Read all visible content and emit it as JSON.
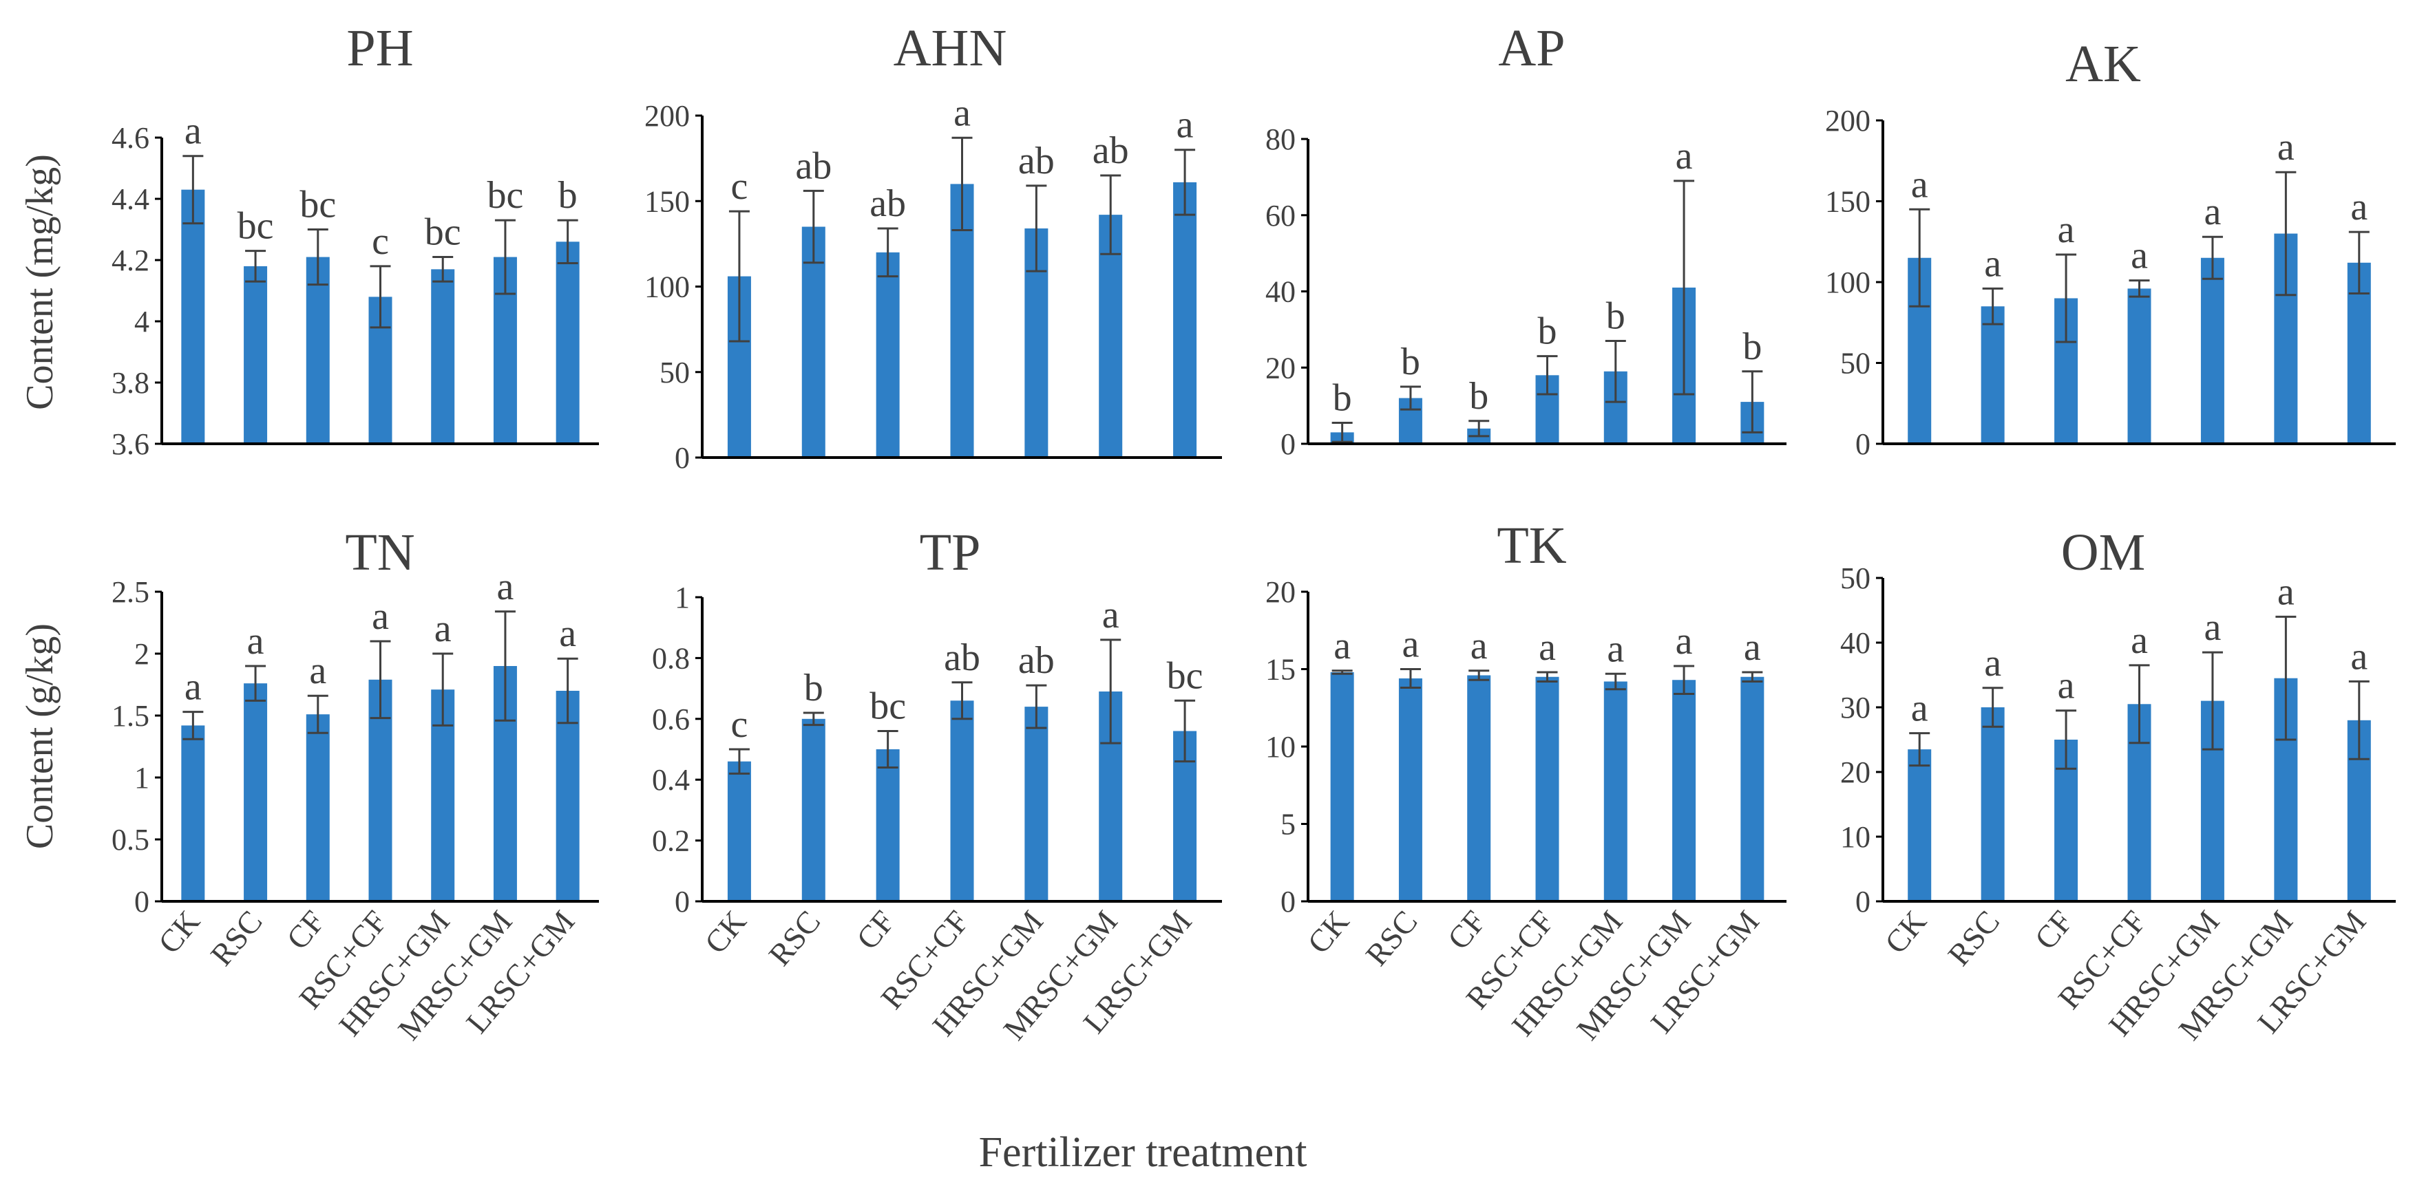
{
  "figure": {
    "xlabel": "Fertilizer treatment",
    "ylabel_top": "Content (mg/kg)",
    "ylabel_bottom": "Content (g/kg)"
  },
  "chart_data": [
    {
      "type": "bar",
      "title": "PH",
      "categories": [
        "CK",
        "RSC",
        "CF",
        "RSC+CF",
        "HRSC+GM",
        "MRSC+GM",
        "LRSC+GM"
      ],
      "values": [
        4.43,
        4.18,
        4.21,
        4.08,
        4.17,
        4.21,
        4.26
      ],
      "errors": [
        0.11,
        0.05,
        0.09,
        0.1,
        0.04,
        0.12,
        0.07
      ],
      "labels": [
        "a",
        "bc",
        "bc",
        "c",
        "bc",
        "bc",
        "b"
      ],
      "ylim": [
        3.6,
        4.6
      ],
      "yticks": [
        "3.6",
        "3.8",
        "4",
        "4.2",
        "4.4",
        "4.6"
      ],
      "color": "#2E7FC6"
    },
    {
      "type": "bar",
      "title": "AHN",
      "categories": [
        "CK",
        "RSC",
        "CF",
        "RSC+CF",
        "HRSC+GM",
        "MRSC+GM",
        "LRSC+GM"
      ],
      "values": [
        106,
        135,
        120,
        160,
        134,
        142,
        161
      ],
      "errors": [
        38,
        21,
        14,
        27,
        25,
        23,
        19
      ],
      "labels": [
        "c",
        "ab",
        "ab",
        "a",
        "ab",
        "ab",
        "a"
      ],
      "ylim": [
        0,
        200
      ],
      "yticks": [
        "0",
        "50",
        "100",
        "150",
        "200"
      ],
      "color": "#2E7FC6"
    },
    {
      "type": "bar",
      "title": "AP",
      "categories": [
        "CK",
        "RSC",
        "CF",
        "RSC+CF",
        "HRSC+GM",
        "MRSC+GM",
        "LRSC+GM"
      ],
      "values": [
        3,
        12,
        4,
        18,
        19,
        41,
        11
      ],
      "errors": [
        2.5,
        3,
        2,
        5,
        8,
        28,
        8
      ],
      "labels": [
        "b",
        "b",
        "b",
        "b",
        "b",
        "a",
        "b"
      ],
      "ylim": [
        0,
        80
      ],
      "yticks": [
        "0",
        "20",
        "40",
        "60",
        "80"
      ],
      "color": "#2E7FC6"
    },
    {
      "type": "bar",
      "title": "AK",
      "categories": [
        "CK",
        "RSC",
        "CF",
        "RSC+CF",
        "HRSC+GM",
        "MRSC+GM",
        "LRSC+GM"
      ],
      "values": [
        115,
        85,
        90,
        96,
        115,
        130,
        112
      ],
      "errors": [
        30,
        11,
        27,
        5,
        13,
        38,
        19
      ],
      "labels": [
        "a",
        "a",
        "a",
        "a",
        "a",
        "a",
        "a"
      ],
      "ylim": [
        0,
        200
      ],
      "yticks": [
        "0",
        "50",
        "100",
        "150",
        "200"
      ],
      "color": "#2E7FC6"
    },
    {
      "type": "bar",
      "title": "TN",
      "categories": [
        "CK",
        "RSC",
        "CF",
        "RSC+CF",
        "HRSC+GM",
        "MRSC+GM",
        "LRSC+GM"
      ],
      "values": [
        1.42,
        1.76,
        1.51,
        1.79,
        1.71,
        1.9,
        1.7
      ],
      "errors": [
        0.11,
        0.14,
        0.15,
        0.31,
        0.29,
        0.44,
        0.26
      ],
      "labels": [
        "a",
        "a",
        "a",
        "a",
        "a",
        "a",
        "a"
      ],
      "ylim": [
        0,
        2.5
      ],
      "yticks": [
        "0",
        "0.5",
        "1",
        "1.5",
        "2",
        "2.5"
      ],
      "color": "#2E7FC6"
    },
    {
      "type": "bar",
      "title": "TP",
      "categories": [
        "CK",
        "RSC",
        "CF",
        "RSC+CF",
        "HRSC+GM",
        "MRSC+GM",
        "LRSC+GM"
      ],
      "values": [
        0.46,
        0.6,
        0.5,
        0.66,
        0.64,
        0.69,
        0.56
      ],
      "errors": [
        0.04,
        0.02,
        0.06,
        0.06,
        0.07,
        0.17,
        0.1
      ],
      "labels": [
        "c",
        "b",
        "bc",
        "ab",
        "ab",
        "a",
        "bc"
      ],
      "ylim": [
        0,
        1
      ],
      "yticks": [
        "0",
        "0.2",
        "0.4",
        "0.6",
        "0.8",
        "1"
      ],
      "color": "#2E7FC6"
    },
    {
      "type": "bar",
      "title": "TK",
      "categories": [
        "CK",
        "RSC",
        "CF",
        "RSC+CF",
        "HRSC+GM",
        "MRSC+GM",
        "LRSC+GM"
      ],
      "values": [
        14.8,
        14.4,
        14.6,
        14.5,
        14.2,
        14.3,
        14.5
      ],
      "errors": [
        0.1,
        0.6,
        0.3,
        0.3,
        0.5,
        0.9,
        0.3
      ],
      "labels": [
        "a",
        "a",
        "a",
        "a",
        "a",
        "a",
        "a"
      ],
      "ylim": [
        0,
        20
      ],
      "yticks": [
        "0",
        "5",
        "10",
        "15",
        "20"
      ],
      "color": "#2E7FC6"
    },
    {
      "type": "bar",
      "title": "OM",
      "categories": [
        "CK",
        "RSC",
        "CF",
        "RSC+CF",
        "HRSC+GM",
        "MRSC+GM",
        "LRSC+GM"
      ],
      "values": [
        23.5,
        30,
        25,
        30.5,
        31,
        34.5,
        28
      ],
      "errors": [
        2.5,
        3,
        4.5,
        6,
        7.5,
        9.5,
        6
      ],
      "labels": [
        "a",
        "a",
        "a",
        "a",
        "a",
        "a",
        "a"
      ],
      "ylim": [
        0,
        50
      ],
      "yticks": [
        "0",
        "10",
        "20",
        "30",
        "40",
        "50"
      ],
      "color": "#2E7FC6"
    }
  ]
}
